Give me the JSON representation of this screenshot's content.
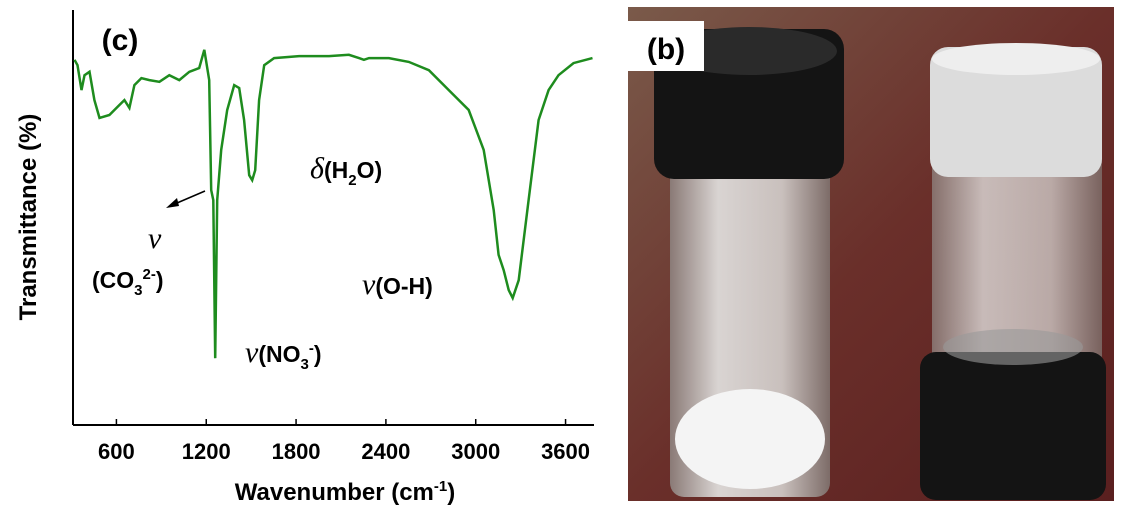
{
  "chart_data": {
    "type": "line",
    "panel_label": "(c)",
    "ylabel": "Transmittance (%)",
    "xlabel": {
      "parts": [
        "Wavenumber (cm",
        {
          "sup": "-1"
        },
        ")"
      ]
    },
    "xlim": [
      310,
      3790
    ],
    "xticks": [
      600,
      1200,
      1800,
      2400,
      3000,
      3600
    ],
    "ylim": [
      0,
      100
    ],
    "color": "#1e8c1e",
    "x": [
      320,
      340,
      367,
      387,
      420,
      453,
      487,
      553,
      620,
      653,
      687,
      720,
      767,
      820,
      887,
      953,
      1020,
      1087,
      1153,
      1187,
      1220,
      1233,
      1247,
      1260,
      1273,
      1300,
      1340,
      1387,
      1420,
      1453,
      1487,
      1507,
      1527,
      1553,
      1587,
      1653,
      1820,
      2020,
      2153,
      2220,
      2253,
      2287,
      2420,
      2553,
      2687,
      2820,
      2953,
      3053,
      3120,
      3153,
      3187,
      3220,
      3247,
      3287,
      3353,
      3420,
      3487,
      3553,
      3653,
      3780
    ],
    "values": [
      88.0,
      86.7,
      80.7,
      84.3,
      85.1,
      78.3,
      74.0,
      74.7,
      77.1,
      78.3,
      76.4,
      81.9,
      83.6,
      83.1,
      82.7,
      84.3,
      83.1,
      85.1,
      86.0,
      90.4,
      83.1,
      56.6,
      54.2,
      16.1,
      54.2,
      66.3,
      75.9,
      81.9,
      81.2,
      73.5,
      60.2,
      59.0,
      61.4,
      78.3,
      86.7,
      88.4,
      88.9,
      88.9,
      89.2,
      88.4,
      88.0,
      88.4,
      88.4,
      87.5,
      85.5,
      80.7,
      75.9,
      66.3,
      51.8,
      41.0,
      37.3,
      32.5,
      30.6,
      34.9,
      54.2,
      73.5,
      80.7,
      84.3,
      87.2,
      88.4
    ],
    "annotations": [
      {
        "parts": [
          {
            "greek": "δ"
          },
          "(H",
          {
            "sub": "2"
          },
          "O)"
        ]
      },
      {
        "parts": [
          {
            "greek": "ν"
          }
        ]
      },
      {
        "parts": [
          "(CO",
          {
            "sub": "3"
          },
          {
            "sup": "2-"
          },
          ")"
        ]
      },
      {
        "parts": [
          {
            "greek": "ν"
          },
          "(O-H)"
        ]
      },
      {
        "parts": [
          {
            "greek": "ν"
          },
          "(NO",
          {
            "sub": "3"
          },
          {
            "sup": "-"
          },
          ")"
        ]
      }
    ]
  },
  "photo": {
    "label": "(b)"
  }
}
